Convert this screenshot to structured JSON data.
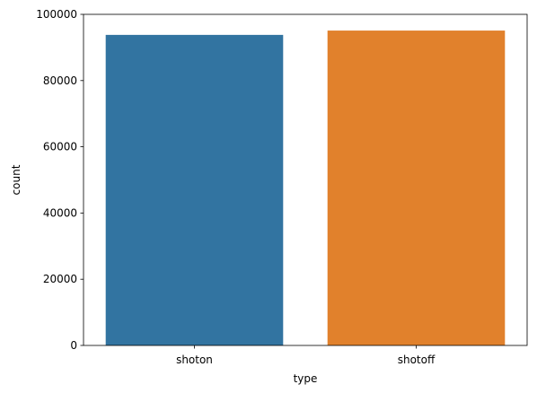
{
  "chart_data": {
    "type": "bar",
    "title": "",
    "xlabel": "type",
    "ylabel": "count",
    "categories": [
      "shoton",
      "shotoff"
    ],
    "values": [
      93800,
      95100
    ],
    "colors": [
      "#3274a1",
      "#e1812c"
    ],
    "ylim": [
      0,
      100000
    ],
    "yticks": [
      0,
      20000,
      40000,
      60000,
      80000,
      100000
    ],
    "grid": false
  }
}
